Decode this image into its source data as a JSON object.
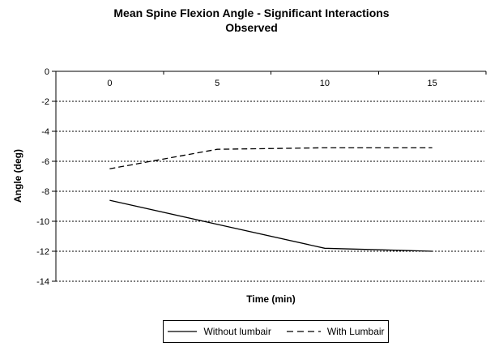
{
  "chart_data": {
    "type": "line",
    "title": "Mean Spine Flexion Angle - Significant Interactions\nObserved",
    "xlabel": "Time (min)",
    "ylabel": "Angle (deg)",
    "categories": [
      "0",
      "5",
      "10",
      "15"
    ],
    "series": [
      {
        "name": "Without lumbair",
        "style": "solid",
        "values": [
          -8.6,
          -10.2,
          -11.8,
          -12.0
        ]
      },
      {
        "name": "With Lumbair",
        "style": "dashed",
        "values": [
          -6.5,
          -5.2,
          -5.1,
          -5.1
        ]
      }
    ],
    "ylim": [
      -14,
      0
    ],
    "yticks": [
      0,
      -2,
      -4,
      -6,
      -8,
      -10,
      -12,
      -14
    ],
    "grid": "horizontal-dashed",
    "legend_position": "bottom",
    "colors": {
      "line": "#000000",
      "grid": "#000000",
      "text": "#000000",
      "background": "#ffffff"
    }
  }
}
